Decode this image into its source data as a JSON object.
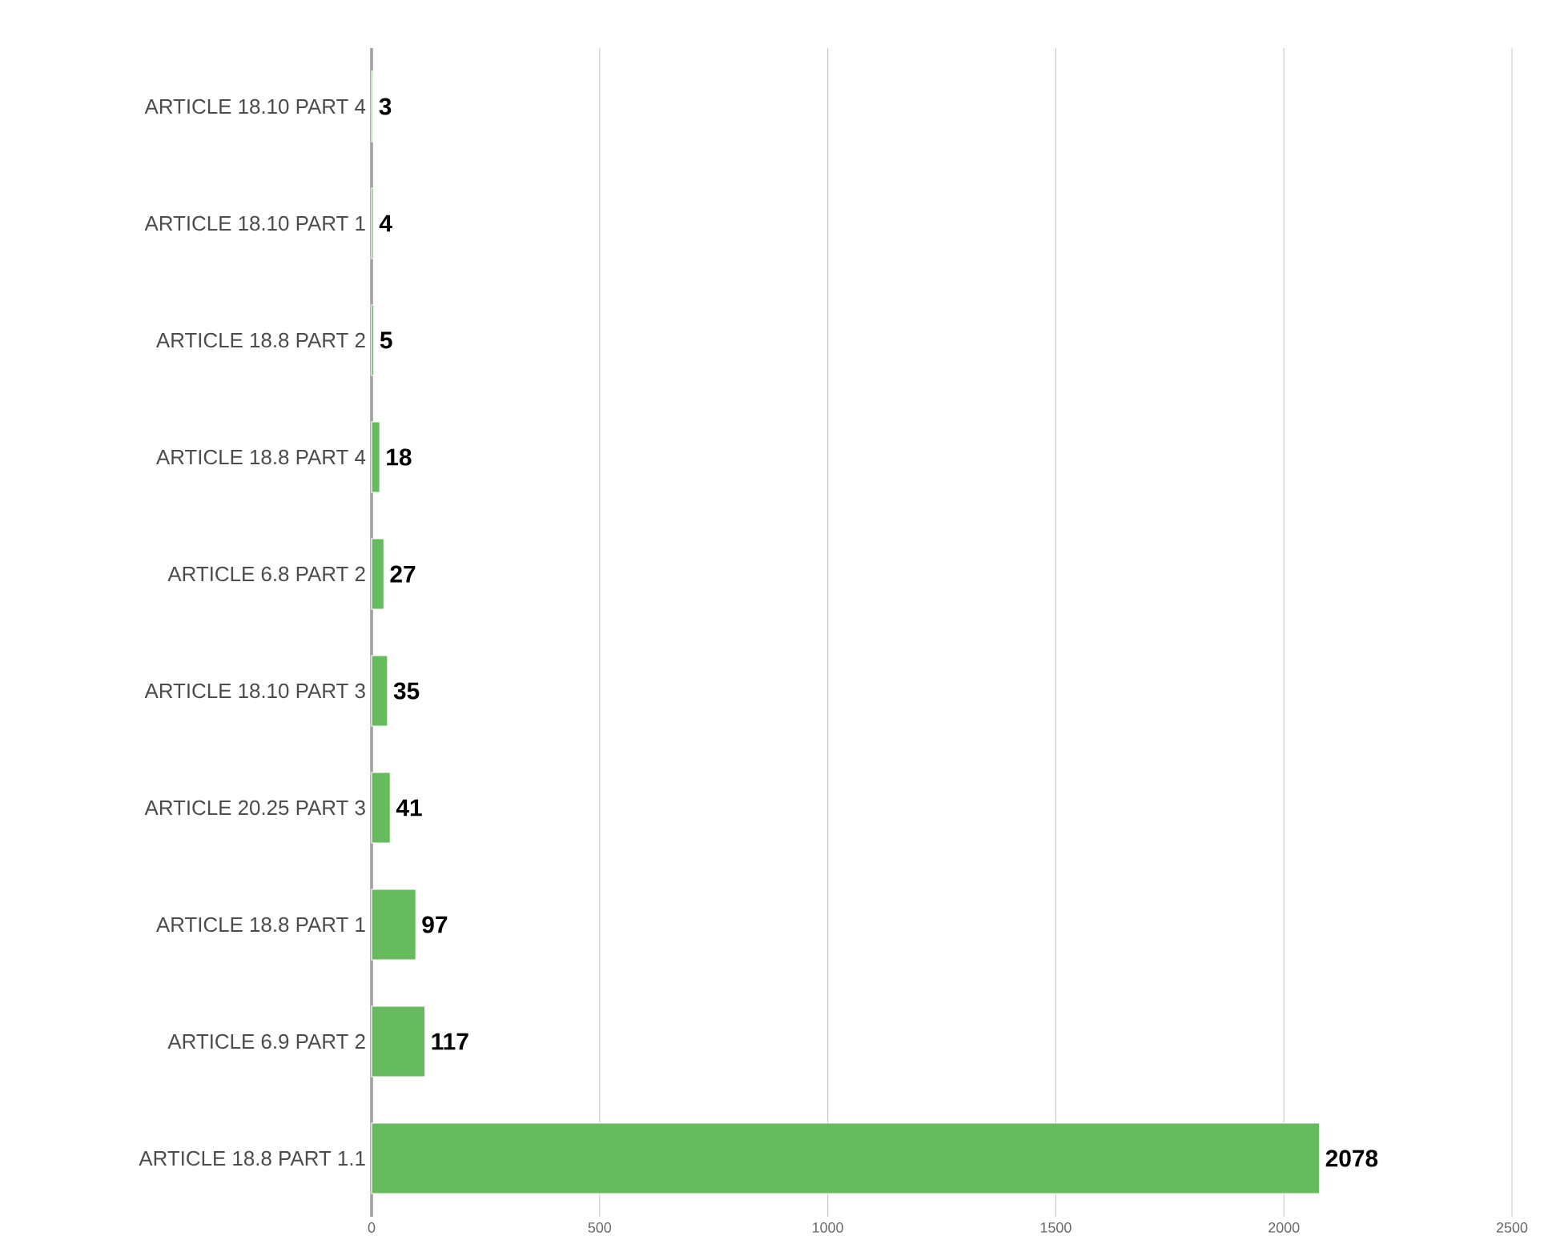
{
  "chart_data": {
    "type": "bar",
    "orientation": "horizontal",
    "categories": [
      "ARTICLE 18.10 PART 4",
      "ARTICLE 18.10 PART 1",
      "ARTICLE 18.8 PART 2",
      "ARTICLE 18.8 PART 4",
      "ARTICLE 6.8 PART 2",
      "ARTICLE 18.10 PART 3",
      "ARTICLE 20.25 PART 3",
      "ARTICLE 18.8 PART 1",
      "ARTICLE 6.9 PART 2",
      "ARTICLE 18.8 PART 1.1"
    ],
    "values": [
      3,
      4,
      5,
      18,
      27,
      35,
      41,
      97,
      117,
      2078
    ],
    "color": "#66bb5f",
    "xlim": [
      0,
      2500
    ],
    "xticks": [
      0,
      500,
      1000,
      1500,
      2000,
      2500
    ],
    "grid": "x",
    "data_labels": true
  }
}
